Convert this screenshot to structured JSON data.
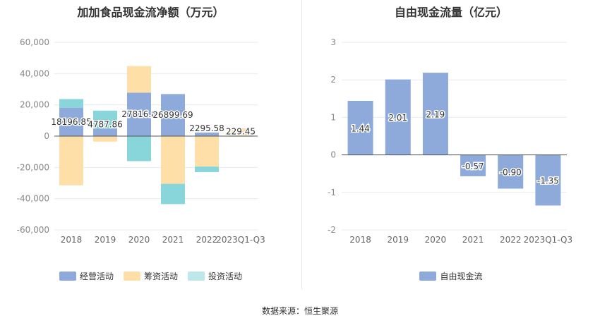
{
  "chart_data": [
    {
      "type": "bar",
      "stacked": true,
      "title": "加加食品现金流净额（万元）",
      "categories": [
        "2018",
        "2019",
        "2020",
        "2021",
        "2022",
        "2023Q1-Q3"
      ],
      "yticks": [
        "60,000",
        "40,000",
        "20,000",
        "0",
        "-20,000",
        "-40,000",
        "-60,000"
      ],
      "ylim": [
        -60000,
        60000
      ],
      "series": [
        {
          "name": "经营活动",
          "color": "#8eaadb",
          "values": [
            18196.85,
            4787.86,
            27816.8,
            26899.69,
            2295.58,
            229.45
          ]
        },
        {
          "name": "筹资活动",
          "color": "#ffdfa8",
          "values": [
            -31500,
            -3500,
            17000,
            -30500,
            -19500,
            4800
          ]
        },
        {
          "name": "投资活动",
          "color": "#88d6d9",
          "values": [
            5500,
            11500,
            -16000,
            -13000,
            -3500,
            -300
          ]
        }
      ],
      "labels": [
        "18196.85",
        "4787.86",
        "27816.8",
        "26899.69",
        "2295.58",
        "229.45"
      ],
      "legend_position": "bottom"
    },
    {
      "type": "bar",
      "title": "自由现金流量（亿元）",
      "categories": [
        "2018",
        "2019",
        "2020",
        "2021",
        "2022",
        "2023Q1-Q3"
      ],
      "yticks": [
        "3",
        "2",
        "1",
        "0",
        "-1",
        "-2"
      ],
      "ylim": [
        -2,
        3
      ],
      "series": [
        {
          "name": "自由现金流",
          "color": "#8eaadb",
          "values": [
            1.44,
            2.01,
            2.19,
            -0.57,
            -0.9,
            -1.35
          ]
        }
      ],
      "labels": [
        "1.44",
        "2.01",
        "2.19",
        "-0.57",
        "-0.90",
        "-1.35"
      ],
      "legend_position": "bottom"
    }
  ],
  "footer": {
    "source": "数据来源：恒生聚源"
  }
}
